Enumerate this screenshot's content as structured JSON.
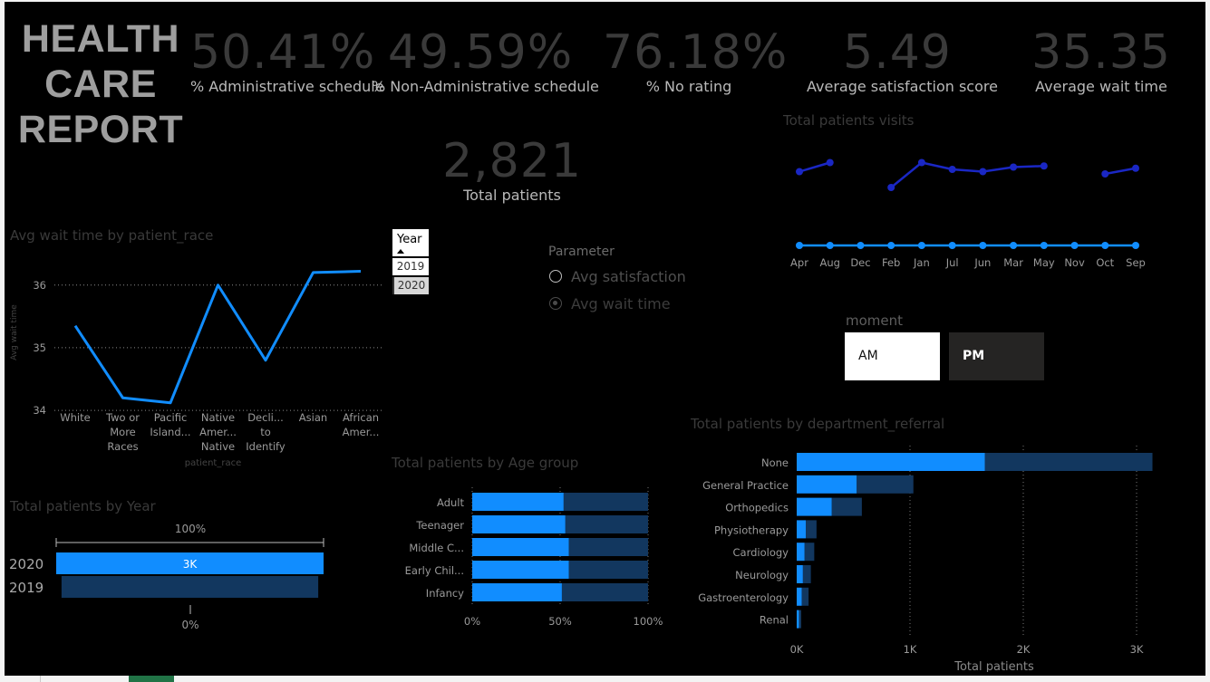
{
  "report": {
    "title_lines": [
      "HEALTH",
      "CARE",
      "REPORT"
    ]
  },
  "kpis": [
    {
      "value": "50.41%",
      "label": "% Administrative schedule"
    },
    {
      "value": "49.59%",
      "label": "% Non-Administrative schedule"
    },
    {
      "value": "76.18%",
      "label": "% No rating"
    },
    {
      "value": "5.49",
      "label": "Average satisfaction score"
    },
    {
      "value": "35.35",
      "label": "Average wait time"
    }
  ],
  "total_patients": {
    "value": "2,821",
    "label": "Total patients"
  },
  "year_slicer": {
    "header": "Year",
    "options": [
      "2019",
      "2020"
    ],
    "selected": "2020"
  },
  "parameter": {
    "title": "Parameter",
    "options": [
      "Avg satisfaction",
      "Avg wait time"
    ],
    "selected": "Avg wait time"
  },
  "moment": {
    "title": "moment",
    "options": [
      "AM",
      "PM"
    ],
    "selected": "AM"
  },
  "colors": {
    "accent": "#118dff",
    "dark_series": "#12375f",
    "line_navy": "#1a27c4",
    "axis": "#9a9a9a"
  },
  "charts": {
    "race_title": "Avg wait time by patient_race",
    "visits_title": "Total patients visits",
    "year_title": "Total patients by Year",
    "age_title": "Total patients by Age group",
    "dept_title": "Total patients by department_referral"
  },
  "chart_data": [
    {
      "type": "line",
      "title": "Avg wait time by patient_race",
      "xlabel": "patient_race",
      "ylabel": "Avg wait time",
      "categories": [
        "White",
        "Two or More Races",
        "Pacific Island...",
        "Native Amer... Native",
        "Decli... to Identify",
        "Asian",
        "African Amer..."
      ],
      "category_lines": [
        [
          "White"
        ],
        [
          "Two or",
          "More",
          "Races"
        ],
        [
          "Pacific",
          "Island..."
        ],
        [
          "Native",
          "Amer...",
          "Native"
        ],
        [
          "Decli...",
          "to",
          "Identify"
        ],
        [
          "Asian"
        ],
        [
          "African",
          "Amer..."
        ]
      ],
      "values": [
        35.35,
        34.2,
        34.12,
        36.0,
        34.8,
        36.2,
        36.22
      ],
      "yticks": [
        34,
        35,
        36
      ],
      "ylim": [
        33.9,
        36.3
      ],
      "grid": true
    },
    {
      "type": "line",
      "title": "Total patients visits",
      "categories": [
        "Apr",
        "Aug",
        "Dec",
        "Feb",
        "Jan",
        "Jul",
        "Jun",
        "Mar",
        "May",
        "Nov",
        "Oct",
        "Sep"
      ],
      "values": [
        5.3,
        5.7,
        null,
        4.6,
        5.7,
        5.4,
        5.3,
        5.5,
        5.55,
        null,
        5.2,
        5.45
      ],
      "ylim": [
        4.4,
        6.0
      ]
    },
    {
      "type": "bar",
      "title": "Total patients by Year",
      "orientation": "horizontal",
      "categories": [
        "2020",
        "2019"
      ],
      "values": [
        100,
        96
      ],
      "data_labels": [
        "3K",
        ""
      ],
      "top_label": "100%",
      "bottom_label": "0%"
    },
    {
      "type": "bar",
      "title": "Total patients by Age group",
      "orientation": "horizontal",
      "stacked": "100%",
      "categories": [
        "Adult",
        "Teenager",
        "Middle C...",
        "Early Chil...",
        "Infancy"
      ],
      "series": [
        {
          "values": [
            52,
            53,
            55,
            55,
            51
          ]
        },
        {
          "values": [
            48,
            47,
            45,
            45,
            49
          ]
        }
      ],
      "xticks": [
        "0%",
        "50%",
        "100%"
      ]
    },
    {
      "type": "bar",
      "title": "Total patients by department_referral",
      "orientation": "horizontal",
      "stacked": true,
      "xlabel": "Total patients",
      "categories": [
        "None",
        "General Practice",
        "Orthopedics",
        "Physiotherapy",
        "Cardiology",
        "Neurology",
        "Gastroenterology",
        "Renal"
      ],
      "series": [
        {
          "values": [
            1660,
            530,
            310,
            80,
            70,
            55,
            45,
            20
          ]
        },
        {
          "values": [
            1480,
            500,
            265,
            95,
            85,
            70,
            60,
            20
          ]
        }
      ],
      "xticks": [
        "0K",
        "1K",
        "2K",
        "3K"
      ],
      "xlim": [
        0,
        3000
      ]
    }
  ]
}
